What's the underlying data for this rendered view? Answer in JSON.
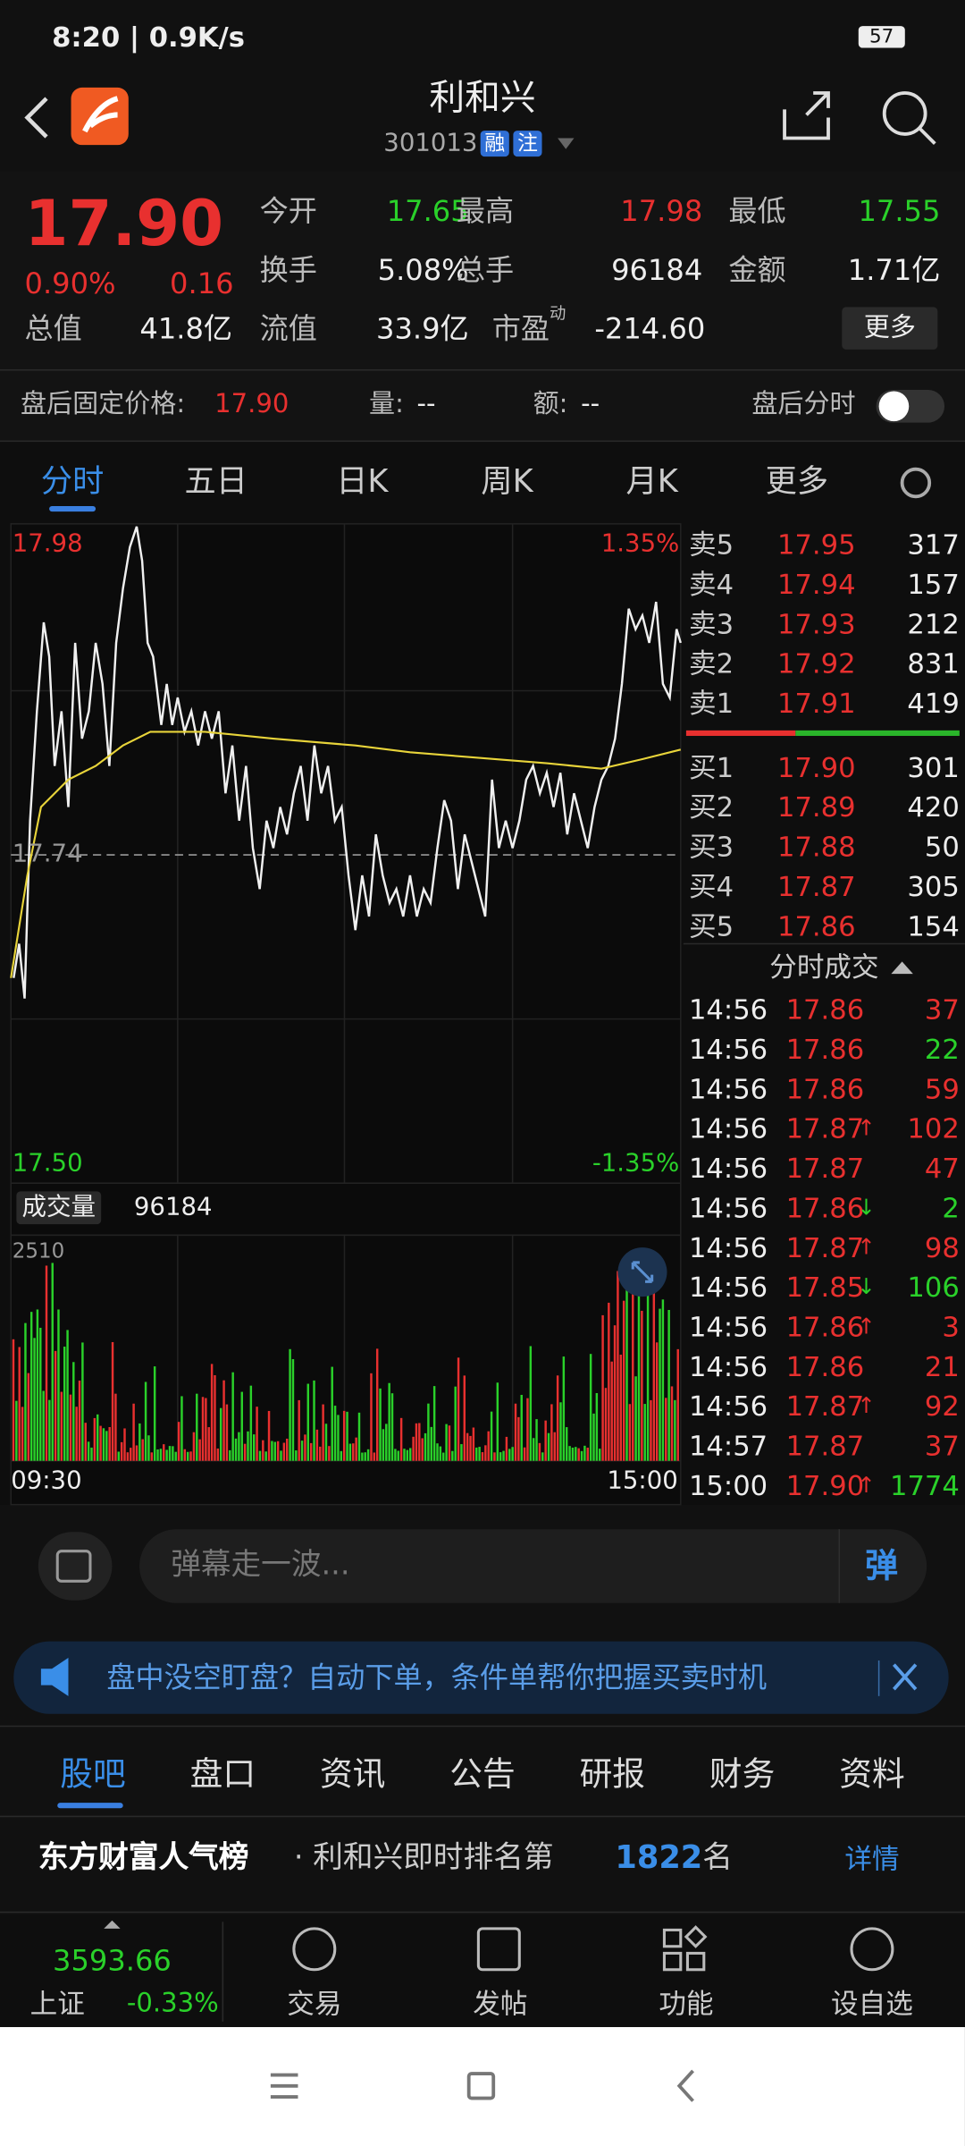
{
  "status": {
    "time": "8:20 | 0.9K/s",
    "battery": "57"
  },
  "header": {
    "title": "利和兴",
    "code": "301013",
    "tags": [
      "融",
      "注"
    ]
  },
  "quote": {
    "price": "17.90",
    "pct": "0.90%",
    "change": "0.16",
    "fields": [
      {
        "label": "今开",
        "value": "17.65"
      },
      {
        "label": "最高",
        "value": "17.98"
      },
      {
        "label": "最低",
        "value": "17.55"
      },
      {
        "label": "换手",
        "value": "5.08%"
      },
      {
        "label": "总手",
        "value": "96184"
      },
      {
        "label": "金额",
        "value": "1.71亿"
      },
      {
        "label": "总值",
        "value": "41.8亿"
      },
      {
        "label": "流值",
        "value": "33.9亿"
      },
      {
        "label": "市盈",
        "sup": "动",
        "value": "-214.60"
      }
    ],
    "more": "更多"
  },
  "afterhours": {
    "label": "盘后固定价格:",
    "price": "17.90",
    "vol_label": "量:",
    "vol": "--",
    "amt_label": "额:",
    "amt": "--",
    "toggle": "盘后分时"
  },
  "tabs": [
    "分时",
    "五日",
    "日K",
    "周K",
    "月K",
    "更多"
  ],
  "chart": {
    "high": "17.98",
    "high_pct": "1.35%",
    "mid": "17.74",
    "low": "17.50",
    "low_pct": "-1.35%",
    "volume_label": "成交量",
    "volume": "96184",
    "vmax": "2510",
    "start": "09:30",
    "end": "15:00"
  },
  "orderbook": {
    "asks": [
      {
        "name": "卖5",
        "price": "17.95",
        "vol": "317"
      },
      {
        "name": "卖4",
        "price": "17.94",
        "vol": "157"
      },
      {
        "name": "卖3",
        "price": "17.93",
        "vol": "212"
      },
      {
        "name": "卖2",
        "price": "17.92",
        "vol": "831"
      },
      {
        "name": "卖1",
        "price": "17.91",
        "vol": "419"
      }
    ],
    "bids": [
      {
        "name": "买1",
        "price": "17.90",
        "vol": "301"
      },
      {
        "name": "买2",
        "price": "17.89",
        "vol": "420"
      },
      {
        "name": "买3",
        "price": "17.88",
        "vol": "50"
      },
      {
        "name": "买4",
        "price": "17.87",
        "vol": "305"
      },
      {
        "name": "买5",
        "price": "17.86",
        "vol": "154"
      }
    ]
  },
  "trades": {
    "title": "分时成交",
    "rows": [
      {
        "time": "14:56",
        "price": "17.86",
        "arrow": "",
        "vol": "37",
        "side": "buy"
      },
      {
        "time": "14:56",
        "price": "17.86",
        "arrow": "",
        "vol": "22",
        "side": "sell"
      },
      {
        "time": "14:56",
        "price": "17.86",
        "arrow": "",
        "vol": "59",
        "side": "buy"
      },
      {
        "time": "14:56",
        "price": "17.87",
        "arrow": "↑",
        "vol": "102",
        "side": "buy"
      },
      {
        "time": "14:56",
        "price": "17.87",
        "arrow": "",
        "vol": "47",
        "side": "buy"
      },
      {
        "time": "14:56",
        "price": "17.86",
        "arrow": "↓",
        "vol": "2",
        "side": "sell"
      },
      {
        "time": "14:56",
        "price": "17.87",
        "arrow": "↑",
        "vol": "98",
        "side": "buy"
      },
      {
        "time": "14:56",
        "price": "17.85",
        "arrow": "↓",
        "vol": "106",
        "side": "sell"
      },
      {
        "time": "14:56",
        "price": "17.86",
        "arrow": "↑",
        "vol": "3",
        "side": "buy"
      },
      {
        "time": "14:56",
        "price": "17.86",
        "arrow": "",
        "vol": "21",
        "side": "buy"
      },
      {
        "time": "14:56",
        "price": "17.87",
        "arrow": "↑",
        "vol": "92",
        "side": "buy"
      },
      {
        "time": "14:57",
        "price": "17.87",
        "arrow": "",
        "vol": "37",
        "side": "buy"
      },
      {
        "time": "15:00",
        "price": "17.90",
        "arrow": "↑",
        "vol": "1774",
        "side": "sell"
      }
    ]
  },
  "comment": {
    "placeholder": "弹幕走一波...",
    "button": "弹"
  },
  "banner": {
    "text": "盘中没空盯盘？自动下单，条件单帮你把握买卖时机"
  },
  "tabs2": [
    "股吧",
    "盘口",
    "资讯",
    "公告",
    "研报",
    "财务",
    "资料"
  ],
  "rank": {
    "brand": "东方财富人气榜",
    "text": "· 利和兴即时排名第",
    "rank": "1822",
    "suffix": "名",
    "link": "详情"
  },
  "bottom": {
    "index_value": "3593.66",
    "index_name": "上证",
    "index_pct": "-0.33%",
    "nav": [
      "交易",
      "发帖",
      "功能",
      "设自选"
    ]
  }
}
